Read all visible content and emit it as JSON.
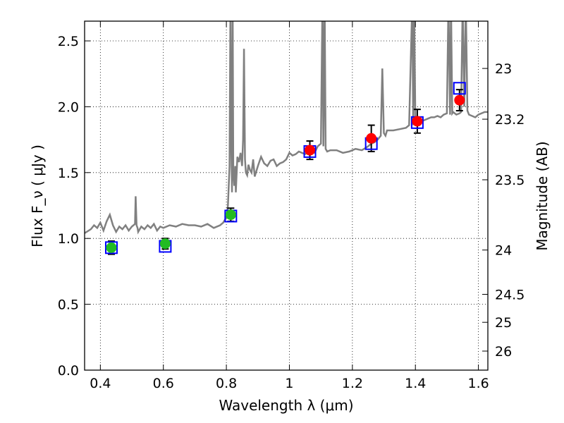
{
  "chart_data": {
    "type": "scatter",
    "xlabel": "Wavelength  λ (μm)",
    "ylabel": "Flux  F_ν  ( μJy )",
    "y2label": "Magnitude (AB)",
    "xlim": [
      0.35,
      1.63
    ],
    "ylim": [
      0.0,
      2.65
    ],
    "grid": true,
    "x_ticks": [
      0.4,
      0.6,
      0.8,
      1.0,
      1.2,
      1.4,
      1.6
    ],
    "x_tick_labels": [
      "0.4",
      "0.6",
      "0.8",
      "1",
      "1.2",
      "1.4",
      "1.6"
    ],
    "y_ticks": [
      0.0,
      0.5,
      1.0,
      1.5,
      2.0,
      2.5
    ],
    "y_tick_labels": [
      "0.0",
      "0.5",
      "1.0",
      "1.5",
      "2.0",
      "2.5"
    ],
    "mag_ticks": [
      23,
      23.2,
      23.5,
      24,
      24.5,
      25,
      26
    ],
    "mag_tick_labels": [
      "23",
      "23.2",
      "23.5",
      "24",
      "24.5",
      "25",
      "26"
    ],
    "colors": {
      "model": "#808080",
      "optical_points": "#22bb22",
      "nir_points": "#ff0000",
      "model_boxes": "#0000ff",
      "errorbars": "#000000"
    },
    "observed_points": [
      {
        "x": 0.435,
        "y": 0.93,
        "err": 0.05,
        "color": "green"
      },
      {
        "x": 0.606,
        "y": 0.96,
        "err": 0.04,
        "color": "green"
      },
      {
        "x": 0.814,
        "y": 1.18,
        "err": 0.05,
        "color": "green"
      },
      {
        "x": 1.065,
        "y": 1.67,
        "err": 0.07,
        "color": "red"
      },
      {
        "x": 1.26,
        "y": 1.76,
        "err": 0.1,
        "color": "red"
      },
      {
        "x": 1.406,
        "y": 1.89,
        "err": 0.09,
        "color": "red"
      },
      {
        "x": 1.54,
        "y": 2.05,
        "err": 0.08,
        "color": "red"
      }
    ],
    "model_photometry": [
      {
        "x": 0.435,
        "y": 0.93
      },
      {
        "x": 0.606,
        "y": 0.94
      },
      {
        "x": 0.814,
        "y": 1.17
      },
      {
        "x": 1.065,
        "y": 1.66
      },
      {
        "x": 1.26,
        "y": 1.72
      },
      {
        "x": 1.406,
        "y": 1.88
      },
      {
        "x": 1.54,
        "y": 2.14
      }
    ],
    "model_spectrum": {
      "x": [
        0.35,
        0.37,
        0.38,
        0.39,
        0.4,
        0.41,
        0.42,
        0.43,
        0.44,
        0.45,
        0.46,
        0.47,
        0.48,
        0.49,
        0.5,
        0.51,
        0.512,
        0.515,
        0.518,
        0.52,
        0.53,
        0.54,
        0.55,
        0.56,
        0.57,
        0.58,
        0.59,
        0.6,
        0.62,
        0.64,
        0.66,
        0.68,
        0.7,
        0.72,
        0.74,
        0.76,
        0.78,
        0.79,
        0.8,
        0.805,
        0.81,
        0.813,
        0.815,
        0.818,
        0.82,
        0.822,
        0.825,
        0.828,
        0.83,
        0.835,
        0.84,
        0.845,
        0.85,
        0.853,
        0.856,
        0.859,
        0.862,
        0.866,
        0.87,
        0.875,
        0.88,
        0.885,
        0.89,
        0.9,
        0.91,
        0.92,
        0.93,
        0.94,
        0.95,
        0.96,
        0.97,
        0.98,
        0.99,
        1.0,
        1.01,
        1.02,
        1.03,
        1.04,
        1.05,
        1.06,
        1.07,
        1.08,
        1.09,
        1.1,
        1.105,
        1.108,
        1.112,
        1.115,
        1.12,
        1.13,
        1.15,
        1.17,
        1.19,
        1.21,
        1.23,
        1.25,
        1.26,
        1.27,
        1.28,
        1.29,
        1.295,
        1.3,
        1.305,
        1.31,
        1.33,
        1.35,
        1.37,
        1.38,
        1.39,
        1.393,
        1.396,
        1.4,
        1.41,
        1.42,
        1.43,
        1.44,
        1.45,
        1.46,
        1.47,
        1.48,
        1.49,
        1.5,
        1.505,
        1.51,
        1.513,
        1.517,
        1.52,
        1.53,
        1.54,
        1.545,
        1.55,
        1.555,
        1.56,
        1.565,
        1.57,
        1.58,
        1.59,
        1.6,
        1.62,
        1.63
      ],
      "y": [
        1.04,
        1.07,
        1.1,
        1.08,
        1.12,
        1.06,
        1.13,
        1.18,
        1.1,
        1.05,
        1.09,
        1.07,
        1.1,
        1.06,
        1.09,
        1.11,
        1.32,
        1.1,
        1.08,
        1.05,
        1.09,
        1.07,
        1.1,
        1.08,
        1.11,
        1.06,
        1.09,
        1.08,
        1.1,
        1.09,
        1.11,
        1.1,
        1.1,
        1.09,
        1.11,
        1.08,
        1.1,
        1.12,
        1.16,
        1.25,
        1.55,
        2.8,
        1.8,
        1.35,
        2.8,
        1.5,
        1.4,
        1.55,
        1.35,
        1.62,
        1.58,
        1.65,
        1.55,
        1.75,
        2.44,
        1.6,
        1.5,
        1.48,
        1.56,
        1.52,
        1.5,
        1.6,
        1.47,
        1.55,
        1.62,
        1.57,
        1.55,
        1.59,
        1.6,
        1.55,
        1.57,
        1.58,
        1.6,
        1.65,
        1.63,
        1.64,
        1.66,
        1.65,
        1.64,
        1.66,
        1.65,
        1.65,
        1.7,
        1.72,
        2.8,
        1.7,
        2.8,
        1.68,
        1.66,
        1.67,
        1.67,
        1.65,
        1.66,
        1.68,
        1.67,
        1.7,
        1.72,
        1.73,
        1.75,
        1.78,
        2.29,
        1.8,
        1.78,
        1.82,
        1.82,
        1.83,
        1.84,
        1.86,
        2.8,
        1.86,
        2.8,
        1.88,
        1.89,
        1.89,
        1.9,
        1.91,
        1.92,
        1.92,
        1.93,
        1.92,
        1.94,
        1.95,
        2.8,
        1.94,
        2.8,
        1.95,
        1.96,
        1.94,
        1.95,
        1.96,
        2.8,
        2.0,
        2.8,
        1.97,
        1.94,
        1.93,
        1.92,
        1.94,
        1.96,
        1.96
      ]
    }
  }
}
